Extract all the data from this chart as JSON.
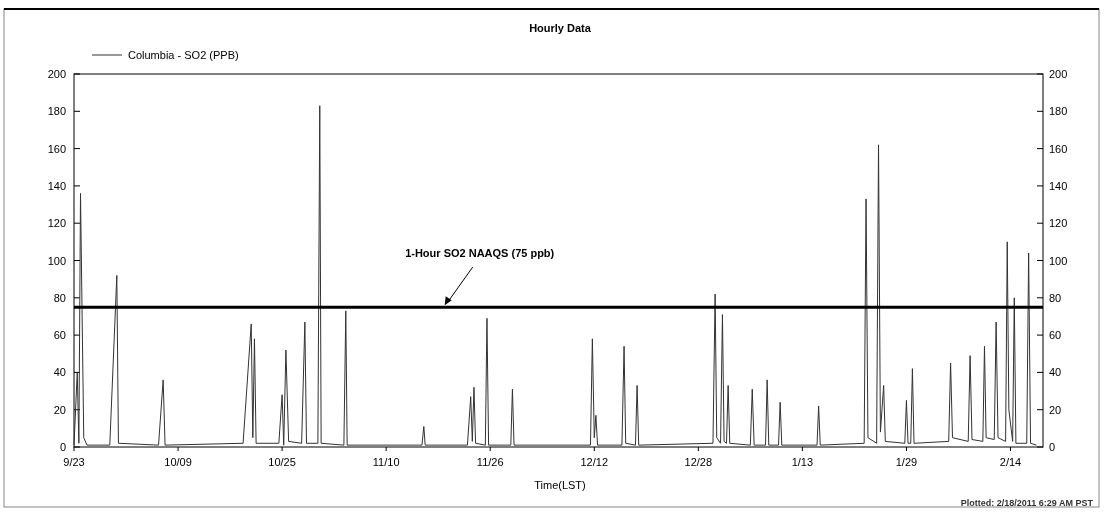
{
  "chart_data": {
    "type": "line",
    "title": "Hourly Data",
    "xlabel": "Time(LST)",
    "xlim": [
      "2010-09-23",
      "2011-02-19"
    ],
    "xticks": [
      {
        "value": "2010-09-23",
        "label": "9/23"
      },
      {
        "value": "2010-10-09",
        "label": "10/09"
      },
      {
        "value": "2010-10-25",
        "label": "10/25"
      },
      {
        "value": "2010-11-10",
        "label": "11/10"
      },
      {
        "value": "2010-11-26",
        "label": "11/26"
      },
      {
        "value": "2010-12-12",
        "label": "12/12"
      },
      {
        "value": "2010-12-28",
        "label": "12/28"
      },
      {
        "value": "2011-01-13",
        "label": "1/13"
      },
      {
        "value": "2011-01-29",
        "label": "1/29"
      },
      {
        "value": "2011-02-14",
        "label": "2/14"
      }
    ],
    "ylim": [
      0,
      200
    ],
    "yticks": [
      0,
      20,
      40,
      60,
      80,
      100,
      120,
      140,
      160,
      180,
      200
    ],
    "y2lim": [
      0,
      200
    ],
    "y2ticks": [
      0,
      20,
      40,
      60,
      80,
      100,
      120,
      140,
      160,
      180,
      200
    ],
    "legend": "top left",
    "line_style": "solid",
    "ref_lines": [
      {
        "axis": "y",
        "value": 75,
        "color": "#000000"
      }
    ],
    "annotations": [
      {
        "text": "1-Hour SO2 NAAQS (75 ppb)",
        "x": "2010-11-19",
        "y": 75
      },
      "Plotted: 2/18/2011 6:29 AM PST"
    ],
    "series": [
      {
        "name": "Columbia - SO2 (PPB)",
        "color": "#333333",
        "x": [
          "2010-09-23T00:00",
          "2010-09-23T12:00",
          "2010-09-23T18:00",
          "2010-09-24T00:00",
          "2010-09-24T06:00",
          "2010-09-24T12:00",
          "2010-09-25T00:00",
          "2010-09-28T12:00",
          "2010-09-29T14:00",
          "2010-09-29T20:00",
          "2010-10-06T00:00",
          "2010-10-06T17:00",
          "2010-10-07T00:00",
          "2010-10-19T00:00",
          "2010-10-20T06:00",
          "2010-10-20T12:00",
          "2010-10-20T18:00",
          "2010-10-21T00:00",
          "2010-10-24T12:00",
          "2010-10-25T00:00",
          "2010-10-25T06:00",
          "2010-10-25T14:00",
          "2010-10-26T00:00",
          "2010-10-28T00:00",
          "2010-10-28T12:00",
          "2010-10-28T18:00",
          "2010-10-30T12:00",
          "2010-10-30T19:00",
          "2010-10-31T00:00",
          "2010-11-03T12:00",
          "2010-11-03T19:00",
          "2010-11-04T00:00",
          "2010-11-15T12:00",
          "2010-11-15T19:00",
          "2010-11-16T00:00",
          "2010-11-22T12:00",
          "2010-11-23T00:00",
          "2010-11-23T06:00",
          "2010-11-23T12:00",
          "2010-11-23T18:00",
          "2010-11-25T06:00",
          "2010-11-25T12:00",
          "2010-11-25T18:00",
          "2010-11-29T04:00",
          "2010-11-29T10:00",
          "2010-11-29T16:00",
          "2010-12-11T10:00",
          "2010-12-11T17:00",
          "2010-12-12T00:00",
          "2010-12-12T06:00",
          "2010-12-12T12:00",
          "2010-12-16T06:00",
          "2010-12-16T14:00",
          "2010-12-16T20:00",
          "2010-12-18T08:00",
          "2010-12-18T14:00",
          "2010-12-18T20:00",
          "2010-12-30T06:00",
          "2010-12-30T14:00",
          "2010-12-30T20:00",
          "2010-12-31T10:00",
          "2010-12-31T17:00",
          "2010-12-31T23:00",
          "2011-01-01T08:00",
          "2011-01-01T14:00",
          "2011-01-01T20:00",
          "2011-01-05T00:00",
          "2011-01-05T07:00",
          "2011-01-05T14:00",
          "2011-01-07T08:00",
          "2011-01-07T14:00",
          "2011-01-07T20:00",
          "2011-01-09T08:00",
          "2011-01-09T14:00",
          "2011-01-09T20:00",
          "2011-01-15T06:00",
          "2011-01-15T12:00",
          "2011-01-15T18:00",
          "2011-01-22T12:00",
          "2011-01-22T19:00",
          "2011-01-23T02:00",
          "2011-01-24T10:00",
          "2011-01-24T17:00",
          "2011-01-25T00:00",
          "2011-01-25T12:00",
          "2011-01-25T18:00",
          "2011-01-28T18:00",
          "2011-01-29T00:00",
          "2011-01-29T06:00",
          "2011-01-29T16:00",
          "2011-01-29T22:00",
          "2011-01-30T04:00",
          "2011-02-04T12:00",
          "2011-02-04T19:00",
          "2011-02-05T02:00",
          "2011-02-07T12:00",
          "2011-02-07T19:00",
          "2011-02-08T02:00",
          "2011-02-09T18:00",
          "2011-02-10T00:00",
          "2011-02-10T06:00",
          "2011-02-11T12:00",
          "2011-02-11T19:00",
          "2011-02-12T02:00",
          "2011-02-13T06:00",
          "2011-02-13T12:00",
          "2011-02-13T18:00",
          "2011-02-14T08:00",
          "2011-02-14T14:00",
          "2011-02-14T20:00",
          "2011-02-16T12:00",
          "2011-02-16T19:00",
          "2011-02-17T02:00",
          "2011-02-18T00:00"
        ],
        "values": [
          1,
          40,
          2,
          136,
          70,
          5,
          1,
          1,
          92,
          2,
          1,
          36,
          1,
          2,
          66,
          5,
          58,
          2,
          2,
          28,
          1,
          52,
          3,
          2,
          67,
          2,
          2,
          183,
          2,
          1,
          73,
          1,
          1,
          11,
          1,
          1,
          27,
          3,
          32,
          2,
          1,
          69,
          1,
          1,
          31,
          1,
          1,
          58,
          5,
          17,
          1,
          1,
          54,
          2,
          1,
          33,
          1,
          2,
          82,
          5,
          2,
          71,
          3,
          2,
          33,
          2,
          1,
          31,
          1,
          1,
          36,
          1,
          1,
          24,
          1,
          1,
          22,
          1,
          2,
          133,
          5,
          2,
          162,
          8,
          33,
          3,
          2,
          25,
          2,
          2,
          42,
          2,
          3,
          45,
          5,
          3,
          49,
          4,
          3,
          54,
          5,
          4,
          67,
          5,
          3,
          110,
          20,
          3,
          80,
          2,
          2,
          104,
          2,
          1
        ]
      }
    ]
  }
}
